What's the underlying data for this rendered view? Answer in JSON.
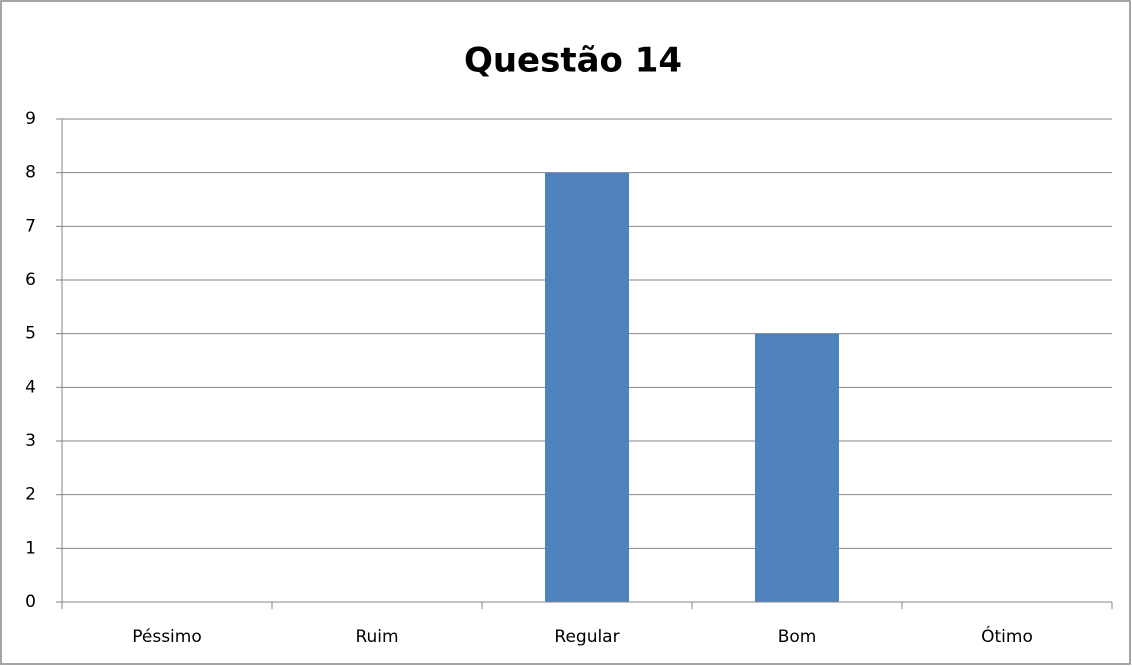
{
  "chart_data": {
    "type": "bar",
    "title": "Questão 14",
    "categories": [
      "Péssimo",
      "Ruim",
      "Regular",
      "Bom",
      "Ótimo"
    ],
    "values": [
      0,
      0,
      8,
      5,
      0
    ],
    "color": "#4f81bd",
    "ylim": [
      0,
      9
    ],
    "yticks": [
      0,
      1,
      2,
      3,
      4,
      5,
      6,
      7,
      8,
      9
    ],
    "grid": true
  }
}
